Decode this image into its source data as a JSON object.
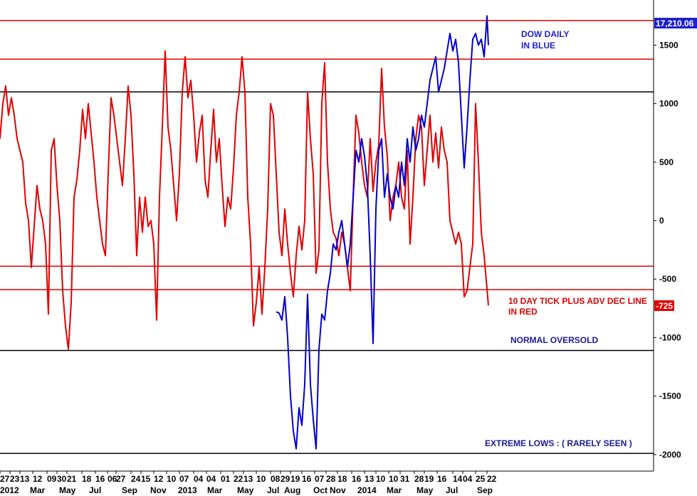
{
  "chart_data": {
    "type": "line",
    "title": "",
    "xlabel": "",
    "ylabel": "",
    "ylim": [
      -2100,
      1800
    ],
    "y_ticks": [
      1500,
      1000,
      500,
      0,
      -500,
      -1000,
      -1500,
      -2000
    ],
    "y_tick_labels": [
      "1500",
      "1000",
      "500",
      "0",
      "-500",
      "-1000",
      "-1500",
      "-2000"
    ],
    "x_day_labels": [
      "27",
      "23",
      "13",
      "12",
      "09",
      "30",
      "21",
      "18",
      "16",
      "06",
      "27",
      "24",
      "15",
      "12",
      "10",
      "07",
      "04",
      "04",
      "01",
      "22",
      "13",
      "10",
      "08",
      "29",
      "19",
      "16",
      "07",
      "28",
      "18",
      "16",
      "13",
      "10",
      "10",
      "31",
      "28",
      "19",
      "16",
      "14",
      "04",
      "25",
      "22"
    ],
    "x_month_labels": [
      "2012",
      "Mar",
      "May",
      "Jul",
      "Sep",
      "Nov",
      "2013",
      "Mar",
      "May",
      "Jul",
      "Aug",
      "Oct",
      "Nov",
      "2014",
      "Mar",
      "May",
      "Jul",
      "Sep"
    ],
    "horizontal_levels": [
      {
        "value": 1710,
        "color": "#e00000"
      },
      {
        "value": 1380,
        "color": "#e00000"
      },
      {
        "value": 1100,
        "color": "#000000"
      },
      {
        "value": -390,
        "color": "#e00000"
      },
      {
        "value": -590,
        "color": "#e00000"
      },
      {
        "value": -1110,
        "color": "#000000"
      },
      {
        "value": -1990,
        "color": "#000000"
      }
    ],
    "series": [
      {
        "color": "#e00000",
        "points": [
          [
            0,
            700
          ],
          [
            4,
            1000
          ],
          [
            8,
            1150
          ],
          [
            12,
            900
          ],
          [
            16,
            1050
          ],
          [
            20,
            900
          ],
          [
            24,
            700
          ],
          [
            28,
            600
          ],
          [
            32,
            500
          ],
          [
            36,
            150
          ],
          [
            40,
            0
          ],
          [
            44,
            -400
          ],
          [
            48,
            -50
          ],
          [
            52,
            300
          ],
          [
            56,
            100
          ],
          [
            60,
            0
          ],
          [
            64,
            -200
          ],
          [
            68,
            -800
          ],
          [
            72,
            600
          ],
          [
            76,
            700
          ],
          [
            80,
            300
          ],
          [
            84,
            0
          ],
          [
            88,
            -600
          ],
          [
            92,
            -900
          ],
          [
            96,
            -1100
          ],
          [
            100,
            -700
          ],
          [
            104,
            200
          ],
          [
            108,
            350
          ],
          [
            112,
            600
          ],
          [
            116,
            950
          ],
          [
            120,
            700
          ],
          [
            124,
            1000
          ],
          [
            128,
            750
          ],
          [
            132,
            500
          ],
          [
            136,
            200
          ],
          [
            140,
            0
          ],
          [
            144,
            -200
          ],
          [
            148,
            -300
          ],
          [
            152,
            400
          ],
          [
            156,
            1050
          ],
          [
            160,
            900
          ],
          [
            164,
            700
          ],
          [
            168,
            500
          ],
          [
            172,
            300
          ],
          [
            176,
            700
          ],
          [
            180,
            1150
          ],
          [
            184,
            900
          ],
          [
            188,
            400
          ],
          [
            192,
            -300
          ],
          [
            196,
            200
          ],
          [
            200,
            -100
          ],
          [
            204,
            200
          ],
          [
            208,
            -50
          ],
          [
            212,
            0
          ],
          [
            216,
            -200
          ],
          [
            220,
            -850
          ],
          [
            224,
            200
          ],
          [
            228,
            800
          ],
          [
            232,
            1450
          ],
          [
            236,
            800
          ],
          [
            240,
            600
          ],
          [
            244,
            300
          ],
          [
            248,
            0
          ],
          [
            252,
            400
          ],
          [
            256,
            1100
          ],
          [
            260,
            1400
          ],
          [
            264,
            1050
          ],
          [
            268,
            1200
          ],
          [
            272,
            900
          ],
          [
            276,
            500
          ],
          [
            280,
            750
          ],
          [
            284,
            900
          ],
          [
            288,
            350
          ],
          [
            292,
            200
          ],
          [
            296,
            600
          ],
          [
            300,
            950
          ],
          [
            304,
            500
          ],
          [
            308,
            700
          ],
          [
            312,
            300
          ],
          [
            316,
            -50
          ],
          [
            320,
            200
          ],
          [
            324,
            100
          ],
          [
            328,
            450
          ],
          [
            332,
            900
          ],
          [
            336,
            1100
          ],
          [
            340,
            1400
          ],
          [
            344,
            1100
          ],
          [
            348,
            200
          ],
          [
            352,
            -200
          ],
          [
            356,
            -900
          ],
          [
            360,
            -700
          ],
          [
            364,
            -400
          ],
          [
            368,
            -800
          ],
          [
            372,
            -400
          ],
          [
            376,
            100
          ],
          [
            380,
            1000
          ],
          [
            384,
            900
          ],
          [
            388,
            400
          ],
          [
            392,
            -100
          ],
          [
            396,
            -300
          ],
          [
            400,
            100
          ],
          [
            404,
            -200
          ],
          [
            408,
            -450
          ],
          [
            412,
            -650
          ],
          [
            416,
            -300
          ],
          [
            420,
            -50
          ],
          [
            424,
            -250
          ],
          [
            428,
            0
          ],
          [
            432,
            1100
          ],
          [
            436,
            700
          ],
          [
            440,
            400
          ],
          [
            444,
            -450
          ],
          [
            448,
            -250
          ],
          [
            452,
            1000
          ],
          [
            456,
            1350
          ],
          [
            460,
            500
          ],
          [
            464,
            100
          ],
          [
            468,
            -100
          ],
          [
            472,
            -150
          ],
          [
            476,
            -300
          ],
          [
            480,
            -100
          ],
          [
            484,
            -200
          ],
          [
            488,
            -400
          ],
          [
            492,
            -600
          ],
          [
            496,
            200
          ],
          [
            500,
            900
          ],
          [
            504,
            750
          ],
          [
            508,
            500
          ],
          [
            512,
            300
          ],
          [
            516,
            200
          ],
          [
            520,
            700
          ],
          [
            524,
            250
          ],
          [
            528,
            500
          ],
          [
            532,
            650
          ],
          [
            536,
            1300
          ],
          [
            540,
            800
          ],
          [
            544,
            550
          ],
          [
            548,
            0
          ],
          [
            552,
            200
          ],
          [
            556,
            300
          ],
          [
            560,
            500
          ],
          [
            564,
            200
          ],
          [
            568,
            100
          ],
          [
            572,
            600
          ],
          [
            576,
            -200
          ],
          [
            580,
            200
          ],
          [
            584,
            700
          ],
          [
            588,
            900
          ],
          [
            592,
            800
          ],
          [
            596,
            300
          ],
          [
            600,
            600
          ],
          [
            604,
            900
          ],
          [
            608,
            500
          ],
          [
            612,
            750
          ],
          [
            616,
            450
          ],
          [
            620,
            800
          ],
          [
            624,
            600
          ],
          [
            628,
            500
          ],
          [
            632,
            0
          ],
          [
            636,
            -100
          ],
          [
            640,
            -200
          ],
          [
            644,
            -100
          ],
          [
            648,
            -200
          ],
          [
            652,
            -650
          ],
          [
            656,
            -600
          ],
          [
            660,
            -400
          ],
          [
            664,
            -200
          ],
          [
            668,
            1000
          ],
          [
            672,
            500
          ],
          [
            676,
            -100
          ],
          [
            680,
            -300
          ],
          [
            684,
            -580
          ],
          [
            686,
            -725
          ]
        ]
      },
      {
        "color": "#0000cc",
        "points": [
          [
            388,
            -780
          ],
          [
            392,
            -790
          ],
          [
            396,
            -850
          ],
          [
            400,
            -650
          ],
          [
            404,
            -1000
          ],
          [
            408,
            -1500
          ],
          [
            412,
            -1800
          ],
          [
            416,
            -1950
          ],
          [
            420,
            -1600
          ],
          [
            424,
            -1750
          ],
          [
            428,
            -1400
          ],
          [
            432,
            -630
          ],
          [
            436,
            -1400
          ],
          [
            440,
            -1700
          ],
          [
            444,
            -1950
          ],
          [
            448,
            -1100
          ],
          [
            452,
            -800
          ],
          [
            456,
            -850
          ],
          [
            460,
            -600
          ],
          [
            464,
            -450
          ],
          [
            468,
            -200
          ],
          [
            472,
            -250
          ],
          [
            476,
            -100
          ],
          [
            480,
            0
          ],
          [
            484,
            -200
          ],
          [
            488,
            -400
          ],
          [
            492,
            -200
          ],
          [
            496,
            200
          ],
          [
            500,
            600
          ],
          [
            504,
            500
          ],
          [
            508,
            700
          ],
          [
            512,
            550
          ],
          [
            516,
            300
          ],
          [
            520,
            -300
          ],
          [
            524,
            -1050
          ],
          [
            528,
            100
          ],
          [
            532,
            600
          ],
          [
            536,
            700
          ],
          [
            540,
            200
          ],
          [
            544,
            400
          ],
          [
            548,
            200
          ],
          [
            552,
            100
          ],
          [
            556,
            300
          ],
          [
            560,
            200
          ],
          [
            564,
            500
          ],
          [
            568,
            300
          ],
          [
            572,
            700
          ],
          [
            576,
            500
          ],
          [
            580,
            800
          ],
          [
            584,
            600
          ],
          [
            588,
            700
          ],
          [
            592,
            900
          ],
          [
            596,
            800
          ],
          [
            600,
            1000
          ],
          [
            604,
            1200
          ],
          [
            608,
            1300
          ],
          [
            612,
            1400
          ],
          [
            616,
            1100
          ],
          [
            620,
            1200
          ],
          [
            624,
            1300
          ],
          [
            628,
            1450
          ],
          [
            632,
            1600
          ],
          [
            636,
            1450
          ],
          [
            640,
            1550
          ],
          [
            644,
            1350
          ],
          [
            648,
            900
          ],
          [
            652,
            450
          ],
          [
            656,
            800
          ],
          [
            660,
            1200
          ],
          [
            664,
            1550
          ],
          [
            668,
            1600
          ],
          [
            672,
            1500
          ],
          [
            676,
            1550
          ],
          [
            680,
            1400
          ],
          [
            684,
            1750
          ],
          [
            686,
            1500
          ]
        ]
      }
    ],
    "last_value_labels": {
      "dow": "17,210.06",
      "tick": "-725"
    },
    "annotations": {
      "dow_line1": "DOW DAILY",
      "dow_line2": "IN BLUE",
      "tick_line1": "10 DAY TICK PLUS ADV DEC LINE",
      "tick_line2": "IN RED",
      "normal": "NORMAL OVERSOLD",
      "extreme": "EXTREME LOWS : ( RARELY SEEN )"
    },
    "grid": false,
    "legend": "none"
  }
}
